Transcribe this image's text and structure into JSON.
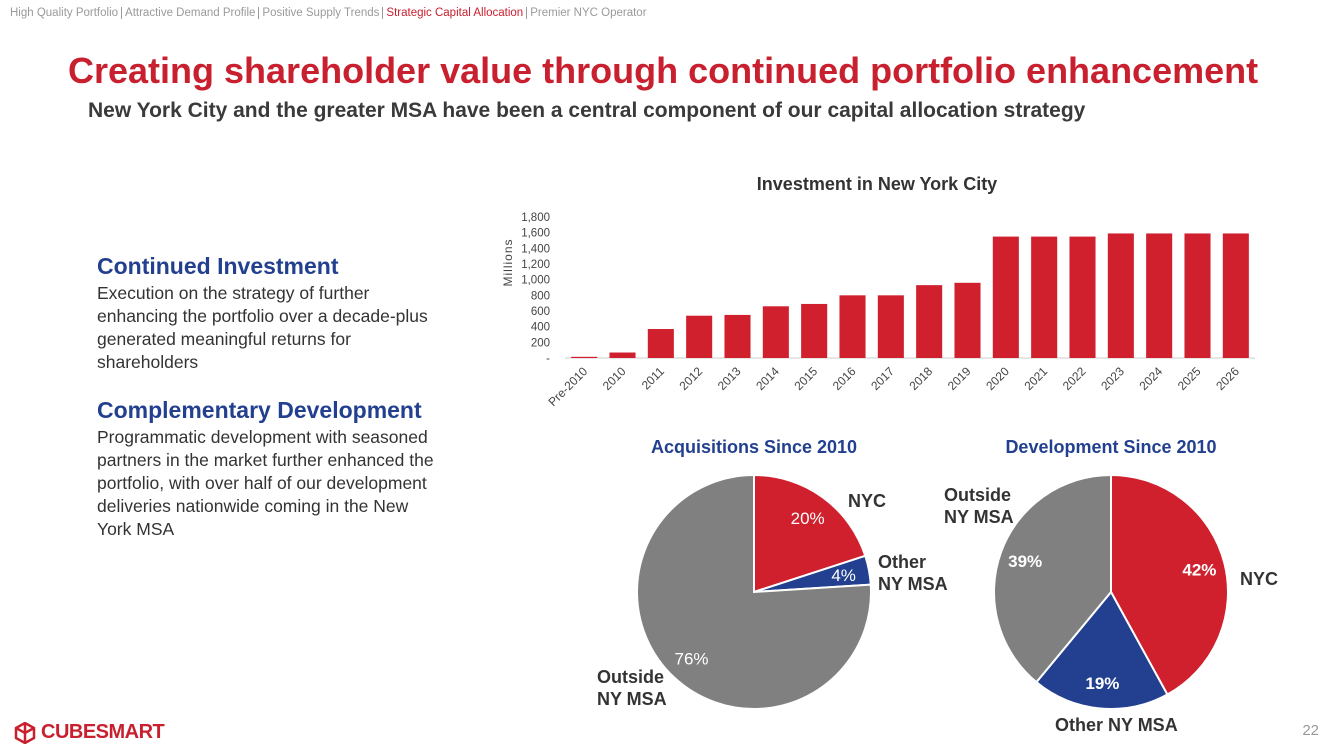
{
  "nav": [
    "High Quality Portfolio",
    "Attractive Demand Profile",
    "Positive Supply Trends",
    "Strategic Capital Allocation",
    "Premier NYC Operator"
  ],
  "title": "Creating shareholder value through continued portfolio enhancement",
  "subtitle": "New York City and the greater MSA have been a central component of our capital allocation strategy",
  "sections": [
    {
      "heading": "Continued Investment",
      "body": "Execution on the strategy of further enhancing the portfolio over a decade-plus generated meaningful returns for shareholders"
    },
    {
      "heading": "Complementary Development",
      "body": "Programmatic development with seasoned partners in the market further enhanced the portfolio, with over half of our development deliveries nationwide coming in the New York MSA"
    }
  ],
  "chart_data": [
    {
      "type": "bar",
      "title": "Investment in New York City",
      "y_label": "Millions",
      "color": "#d0202e",
      "categories": [
        "Pre-2010",
        "2010",
        "2011",
        "2012",
        "2013",
        "2014",
        "2015",
        "2016",
        "2017",
        "2018",
        "2019",
        "2020",
        "2021",
        "2022",
        "2023",
        "2024",
        "2025",
        "2026"
      ],
      "values": [
        15,
        70,
        370,
        540,
        550,
        660,
        690,
        800,
        800,
        930,
        960,
        1550,
        1550,
        1550,
        1590,
        1590,
        1590,
        1590
      ],
      "ylim": [
        0,
        1800
      ],
      "yticks": [
        {
          "value": 0,
          "label": "-"
        },
        200,
        400,
        600,
        800,
        {
          "value": 1000,
          "label": "1,000"
        },
        {
          "value": 1200,
          "label": "1,200"
        },
        {
          "value": 1400,
          "label": "1,400"
        },
        {
          "value": 1600,
          "label": "1,600"
        },
        {
          "value": 1800,
          "label": "1,800"
        }
      ]
    },
    {
      "type": "pie",
      "title": "Acquisitions Since 2010",
      "categories": [
        "NYC",
        "Other NY MSA",
        "Outside NY MSA"
      ],
      "values": [
        20,
        4,
        76
      ],
      "value_labels": [
        "20%",
        "4%",
        "76%"
      ],
      "colors": [
        "#d0202e",
        "#22408f",
        "#808080"
      ]
    },
    {
      "type": "pie",
      "title": "Development Since 2010",
      "categories": [
        "NYC",
        "Other NY MSA",
        "Outside NY MSA"
      ],
      "values": [
        42,
        19,
        39
      ],
      "value_labels": [
        "42%",
        "19%",
        "39%"
      ],
      "colors": [
        "#d0202e",
        "#22408f",
        "#808080"
      ]
    }
  ],
  "logo": "CubeSmart",
  "page_number": 22
}
